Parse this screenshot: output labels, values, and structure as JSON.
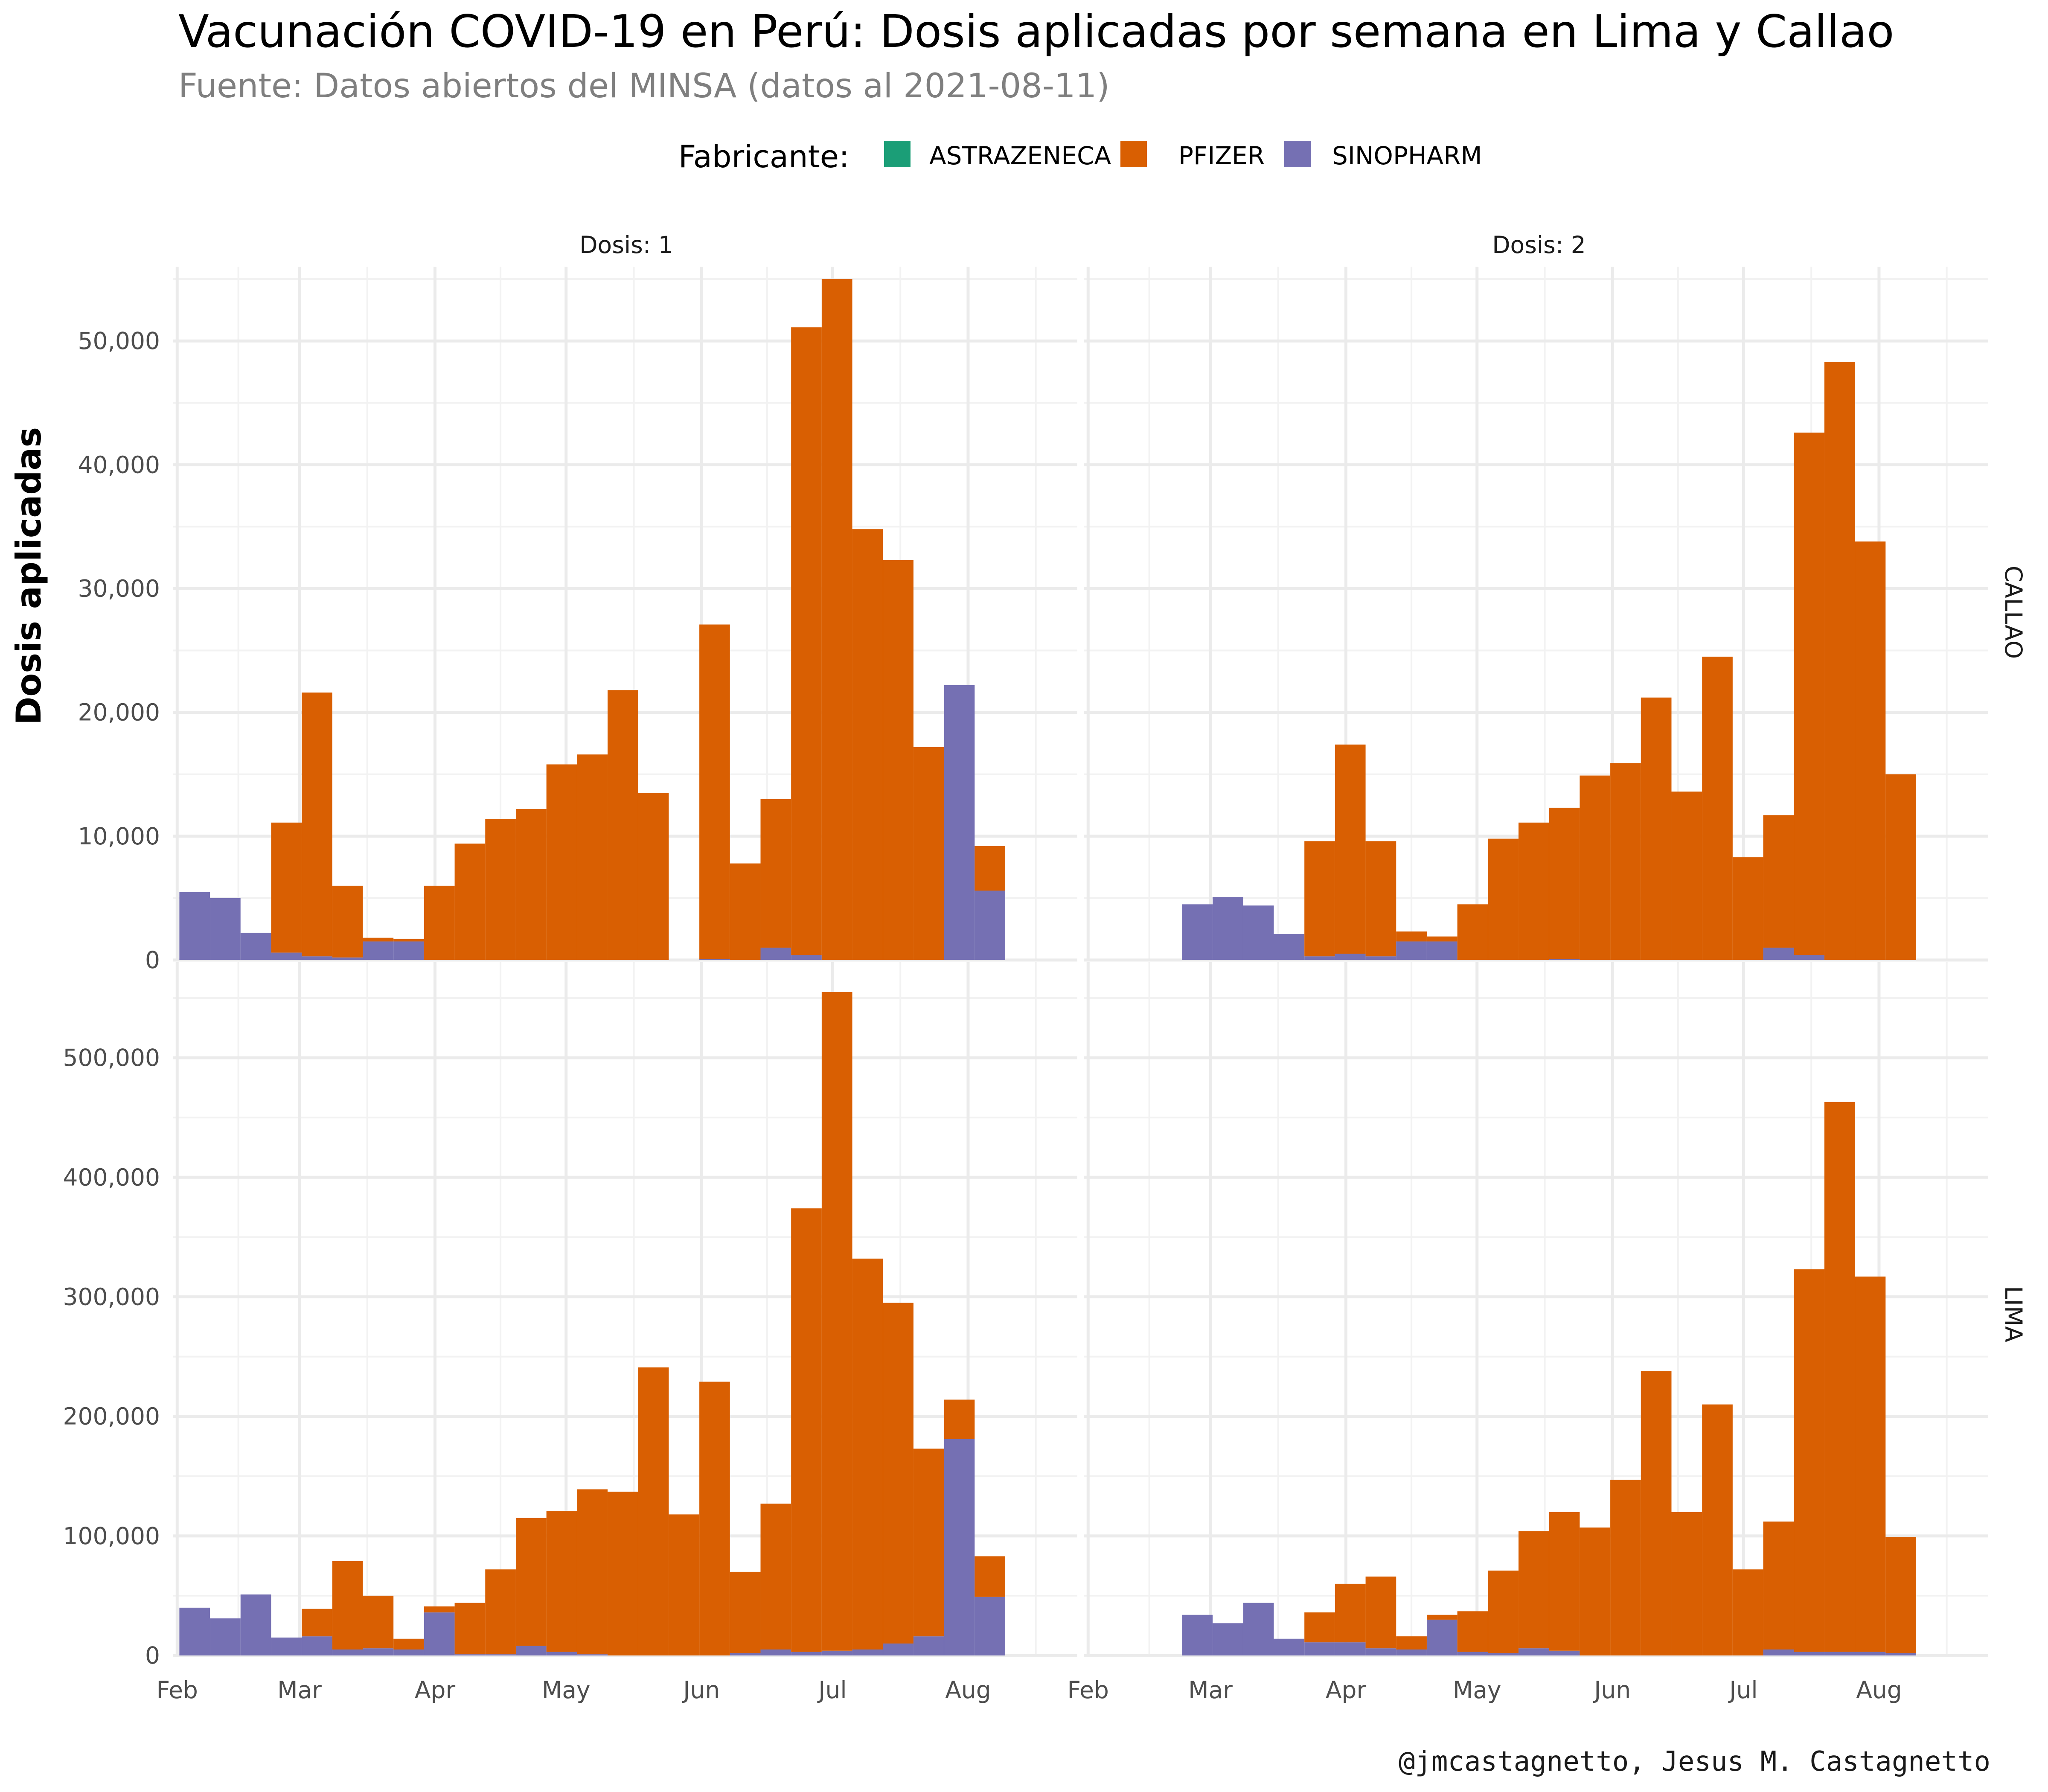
{
  "title": "Vacunación COVID-19 en Perú: Dosis aplicadas por semana en Lima y Callao",
  "subtitle": "Fuente: Datos abiertos del MINSA (datos al 2021-08-11)",
  "caption": "@jmcastagnetto, Jesus M. Castagnetto",
  "legend": {
    "title": "Fabricante:",
    "items": [
      {
        "label": "ASTRAZENECA",
        "color": "#1b9e77"
      },
      {
        "label": "PFIZER",
        "color": "#d95f02"
      },
      {
        "label": "SINOPHARM",
        "color": "#7570b3"
      }
    ]
  },
  "chart_data": {
    "type": "bar",
    "stacked": true,
    "title": "Vacunación COVID-19 en Perú: Dosis aplicadas por semana en Lima y Callao",
    "ylabel": "Dosis aplicadas",
    "xlabel": "",
    "legend_position": "top",
    "grid": true,
    "x_ticks": [
      "Feb",
      "Mar",
      "Apr",
      "May",
      "Jun",
      "Jul",
      "Aug"
    ],
    "x_range": [
      "2021-01-31",
      "2021-08-26"
    ],
    "facet_columns": [
      "Dosis: 1",
      "Dosis: 2"
    ],
    "facet_rows": [
      "CALLAO",
      "LIMA"
    ],
    "series_names": [
      "SINOPHARM",
      "PFIZER"
    ],
    "panels": [
      {
        "row": "CALLAO",
        "col": "Dosis: 1",
        "ylim": [
          0,
          56000
        ],
        "y_ticks": [
          0,
          10000,
          20000,
          30000,
          40000,
          50000
        ],
        "y_tick_labels": [
          "0",
          "10,000",
          "20,000",
          "30,000",
          "40,000",
          "50,000"
        ],
        "weeks": [
          "2021-02-05",
          "2021-02-12",
          "2021-02-19",
          "2021-02-26",
          "2021-03-05",
          "2021-03-12",
          "2021-03-19",
          "2021-03-26",
          "2021-04-02",
          "2021-04-09",
          "2021-04-16",
          "2021-04-23",
          "2021-04-30",
          "2021-05-07",
          "2021-05-14",
          "2021-05-21",
          "2021-05-28",
          "2021-06-04",
          "2021-06-11",
          "2021-06-18",
          "2021-06-25",
          "2021-07-02",
          "2021-07-09",
          "2021-07-16",
          "2021-07-23",
          "2021-07-30",
          "2021-08-06"
        ],
        "sinopharm": [
          5500,
          5000,
          2200,
          600,
          300,
          200,
          1500,
          1500,
          0,
          0,
          0,
          0,
          0,
          0,
          0,
          0,
          0,
          100,
          0,
          1000,
          400,
          0,
          0,
          0,
          0,
          22200,
          5600
        ],
        "pfizer": [
          0,
          0,
          0,
          10500,
          21300,
          5800,
          300,
          200,
          6000,
          9400,
          11400,
          12200,
          15800,
          16600,
          21800,
          13500,
          0,
          27000,
          7800,
          12000,
          50700,
          55000,
          34800,
          32300,
          17200,
          0,
          3600
        ]
      },
      {
        "row": "CALLAO",
        "col": "Dosis: 2",
        "ylim": [
          0,
          56000
        ],
        "y_ticks": [
          0,
          10000,
          20000,
          30000,
          40000,
          50000
        ],
        "y_tick_labels": [
          "0",
          "10,000",
          "20,000",
          "30,000",
          "40,000",
          "50,000"
        ],
        "weeks": [
          "2021-02-26",
          "2021-03-05",
          "2021-03-12",
          "2021-03-19",
          "2021-03-26",
          "2021-04-02",
          "2021-04-09",
          "2021-04-16",
          "2021-04-23",
          "2021-04-30",
          "2021-05-07",
          "2021-05-14",
          "2021-05-21",
          "2021-05-28",
          "2021-06-04",
          "2021-06-11",
          "2021-06-18",
          "2021-06-25",
          "2021-07-02",
          "2021-07-09",
          "2021-07-16",
          "2021-07-23",
          "2021-07-30",
          "2021-08-06"
        ],
        "sinopharm": [
          4500,
          5100,
          4400,
          2100,
          300,
          500,
          300,
          1500,
          1500,
          0,
          0,
          0,
          100,
          0,
          0,
          0,
          0,
          0,
          0,
          1000,
          400,
          0,
          0,
          0
        ],
        "pfizer": [
          0,
          0,
          0,
          0,
          9300,
          16900,
          9300,
          800,
          400,
          4500,
          9800,
          11100,
          12200,
          14900,
          15900,
          21200,
          13600,
          24500,
          8300,
          10700,
          42200,
          48300,
          33800,
          15000
        ]
      },
      {
        "row": "LIMA",
        "col": "Dosis: 1",
        "ylim": [
          0,
          580000
        ],
        "y_ticks": [
          0,
          100000,
          200000,
          300000,
          400000,
          500000
        ],
        "y_tick_labels": [
          "0",
          "100,000",
          "200,000",
          "300,000",
          "400,000",
          "500,000"
        ],
        "weeks": [
          "2021-02-05",
          "2021-02-12",
          "2021-02-19",
          "2021-02-26",
          "2021-03-05",
          "2021-03-12",
          "2021-03-19",
          "2021-03-26",
          "2021-04-02",
          "2021-04-09",
          "2021-04-16",
          "2021-04-23",
          "2021-04-30",
          "2021-05-07",
          "2021-05-14",
          "2021-05-21",
          "2021-05-28",
          "2021-06-04",
          "2021-06-11",
          "2021-06-18",
          "2021-06-25",
          "2021-07-02",
          "2021-07-09",
          "2021-07-16",
          "2021-07-23",
          "2021-07-30",
          "2021-08-06"
        ],
        "sinopharm": [
          40000,
          31000,
          51000,
          15000,
          16000,
          5000,
          6000,
          5000,
          36000,
          1000,
          1000,
          8000,
          3000,
          1000,
          0,
          0,
          0,
          0,
          2000,
          5000,
          3000,
          4000,
          5000,
          10000,
          16000,
          181000,
          49000
        ],
        "pfizer": [
          0,
          0,
          0,
          0,
          23000,
          74000,
          44000,
          9000,
          5000,
          43000,
          71000,
          107000,
          118000,
          138000,
          137000,
          241000,
          118000,
          229000,
          68000,
          122000,
          371000,
          551000,
          327000,
          285000,
          157000,
          33000,
          34000
        ]
      },
      {
        "row": "LIMA",
        "col": "Dosis: 2",
        "ylim": [
          0,
          580000
        ],
        "y_ticks": [
          0,
          100000,
          200000,
          300000,
          400000,
          500000
        ],
        "y_tick_labels": [
          "0",
          "100,000",
          "200,000",
          "300,000",
          "400,000",
          "500,000"
        ],
        "weeks": [
          "2021-02-26",
          "2021-03-05",
          "2021-03-12",
          "2021-03-19",
          "2021-03-26",
          "2021-04-02",
          "2021-04-09",
          "2021-04-16",
          "2021-04-23",
          "2021-04-30",
          "2021-05-07",
          "2021-05-14",
          "2021-05-21",
          "2021-05-28",
          "2021-06-04",
          "2021-06-11",
          "2021-06-18",
          "2021-06-25",
          "2021-07-02",
          "2021-07-09",
          "2021-07-16",
          "2021-07-23",
          "2021-07-30",
          "2021-08-06"
        ],
        "sinopharm": [
          34000,
          27000,
          44000,
          14000,
          11000,
          11000,
          6000,
          5000,
          30000,
          3000,
          2000,
          6000,
          4000,
          0,
          0,
          0,
          0,
          0,
          0,
          5000,
          3000,
          3000,
          3000,
          2000
        ],
        "pfizer": [
          0,
          0,
          0,
          0,
          25000,
          49000,
          60000,
          11000,
          4000,
          34000,
          69000,
          98000,
          116000,
          107000,
          147000,
          238000,
          120000,
          210000,
          72000,
          107000,
          320000,
          460000,
          314000,
          97000
        ]
      }
    ]
  }
}
